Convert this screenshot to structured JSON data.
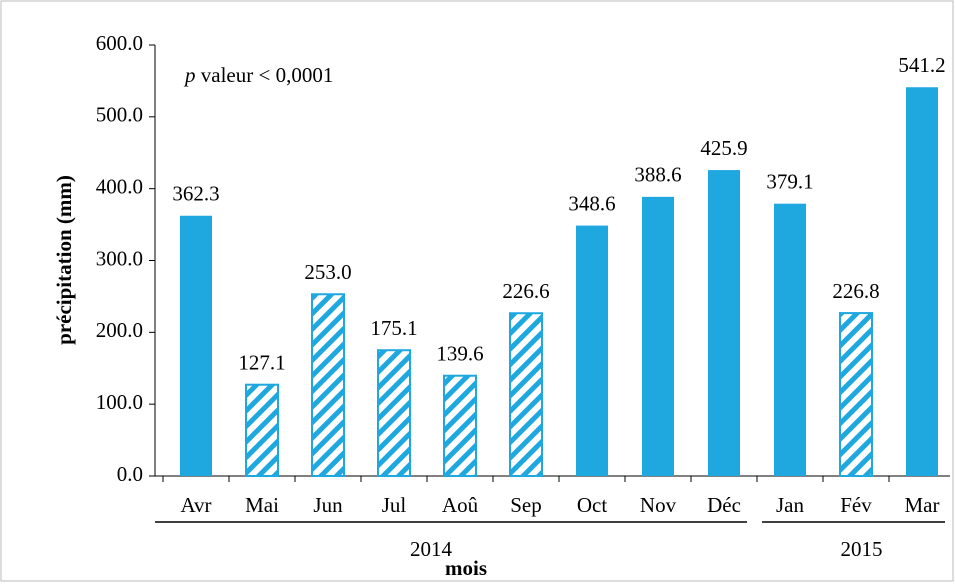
{
  "chart_data": {
    "type": "bar",
    "annotation": {
      "italic": "p",
      "text": " valeur < 0,0001"
    },
    "ylabel": "précipitation (mm)",
    "xlabel": "mois",
    "categories": [
      "Avr",
      "Mai",
      "Jun",
      "Jul",
      "Aoû",
      "Sep",
      "Oct",
      "Nov",
      "Déc",
      "Jan",
      "Fév",
      "Mar"
    ],
    "values": [
      362.3,
      127.1,
      253.0,
      175.1,
      139.6,
      226.6,
      348.6,
      388.6,
      425.9,
      379.1,
      226.8,
      541.2
    ],
    "value_labels": [
      "362.3",
      "127.1",
      "253.0",
      "175.1",
      "139.6",
      "226.6",
      "348.6",
      "388.6",
      "425.9",
      "379.1",
      "226.8",
      "541.2"
    ],
    "fill_styles": [
      "solid",
      "hatch",
      "hatch",
      "hatch",
      "hatch",
      "hatch",
      "solid",
      "solid",
      "solid",
      "solid",
      "hatch",
      "solid"
    ],
    "color": "#1fa8e0",
    "groups": [
      {
        "label": "2014",
        "count": 9
      },
      {
        "label": "2015",
        "count": 3
      }
    ],
    "ylim": [
      0,
      600
    ],
    "yticks": [
      {
        "value": 0,
        "label": "0.0"
      },
      {
        "value": 100,
        "label": "100.0"
      },
      {
        "value": 200,
        "label": "200.0"
      },
      {
        "value": 300,
        "label": "300.0"
      },
      {
        "value": 400,
        "label": "400.0"
      },
      {
        "value": 500,
        "label": "500.0"
      },
      {
        "value": 600,
        "label": "600.0"
      }
    ],
    "grid": false
  }
}
